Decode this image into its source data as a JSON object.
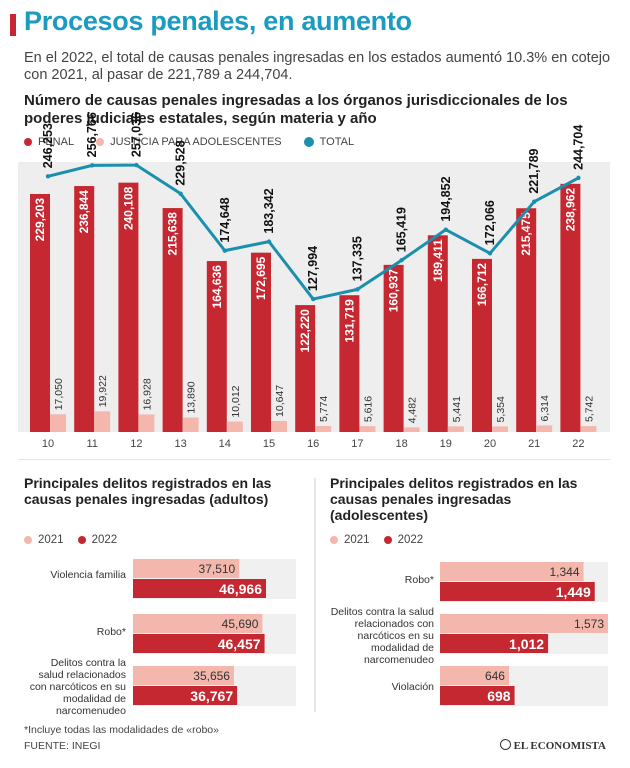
{
  "header": {
    "title": "Procesos penales, en aumento",
    "intro": "En el 2022, el total de causas penales ingresadas en los estados aumentó 10.3% en cotejo con 2021, al pasar de 221,789 a 244,704."
  },
  "colors": {
    "penal": "#c62832",
    "adolescentes": "#f4b7ad",
    "total": "#1a8fae",
    "y2021": "#f4b7ad",
    "y2022": "#c62832"
  },
  "chart_data": [
    {
      "type": "bar",
      "title": "Número de causas penales ingresadas a los órganos jurisdiccionales de los poderes judiciales estatales, según materia y año",
      "legend": [
        "PENAL",
        "JUSTICIA PARA ADOLESCENTES",
        "TOTAL"
      ],
      "categories": [
        "10",
        "11",
        "12",
        "13",
        "14",
        "15",
        "16",
        "17",
        "18",
        "19",
        "20",
        "21",
        "22"
      ],
      "series": [
        {
          "name": "PENAL",
          "values": [
            229203,
            236844,
            240108,
            215638,
            164636,
            172695,
            122220,
            131719,
            160937,
            189411,
            166712,
            215475,
            238962
          ],
          "labels": [
            "229,203",
            "236,844",
            "240,108",
            "215,638",
            "164,636",
            "172,695",
            "122,220",
            "131,719",
            "160,937",
            "189,411",
            "166,712",
            "215,475",
            "238,962"
          ]
        },
        {
          "name": "JUSTICIA PARA ADOLESCENTES",
          "values": [
            17050,
            19922,
            16928,
            13890,
            10012,
            10647,
            5774,
            5616,
            4482,
            5441,
            5354,
            6314,
            5742
          ],
          "labels": [
            "17,050",
            "19,922",
            "16,928",
            "13,890",
            "10,012",
            "10,647",
            "5,774",
            "5,616",
            "4,482",
            "5,441",
            "5,354",
            "6,314",
            "5,742"
          ]
        },
        {
          "name": "TOTAL",
          "values": [
            246253,
            256766,
            257036,
            229528,
            174648,
            183342,
            127994,
            137335,
            165419,
            194852,
            172066,
            221789,
            244704
          ],
          "labels": [
            "246,253",
            "256,766",
            "257,036",
            "229,528",
            "174,648",
            "183,342",
            "127,994",
            "137,335",
            "165,419",
            "194,852",
            "172,066",
            "221,789",
            "244,704"
          ]
        }
      ],
      "ylim": [
        0,
        260000
      ]
    },
    {
      "type": "bar",
      "orientation": "horizontal",
      "title": "Principales delitos registrados en las causas penales ingresadas (adultos)",
      "legend": [
        "2021",
        "2022"
      ],
      "categories": [
        "Violencia familia",
        "Robo*",
        "Delitos contra la salud relacionados con narcóticos en su modalidad de narcomenudeo"
      ],
      "series": [
        {
          "name": "2021",
          "values": [
            37510,
            45690,
            35656
          ],
          "labels": [
            "37,510",
            "45,690",
            "35,656"
          ]
        },
        {
          "name": "2022",
          "values": [
            46966,
            46457,
            36767
          ],
          "labels": [
            "46,966",
            "46,457",
            "36,767"
          ]
        }
      ]
    },
    {
      "type": "bar",
      "orientation": "horizontal",
      "title": "Principales delitos registrados en las causas penales ingresadas (adolescentes)",
      "legend": [
        "2021",
        "2022"
      ],
      "categories": [
        "Robo*",
        "Delitos contra la salud relacionados con narcóticos en su modalidad de narcomenudeo",
        "Violación"
      ],
      "series": [
        {
          "name": "2021",
          "values": [
            1344,
            1573,
            646
          ],
          "labels": [
            "1,344",
            "1,573",
            "646"
          ]
        },
        {
          "name": "2022",
          "values": [
            1449,
            1012,
            698
          ],
          "labels": [
            "1,449",
            "1,012",
            "698"
          ]
        }
      ]
    }
  ],
  "footer": {
    "note": "*Incluye todas las modalidades de «robo»",
    "source": "FUENTE: INEGI",
    "brand": "EL ECONOMISTA"
  }
}
